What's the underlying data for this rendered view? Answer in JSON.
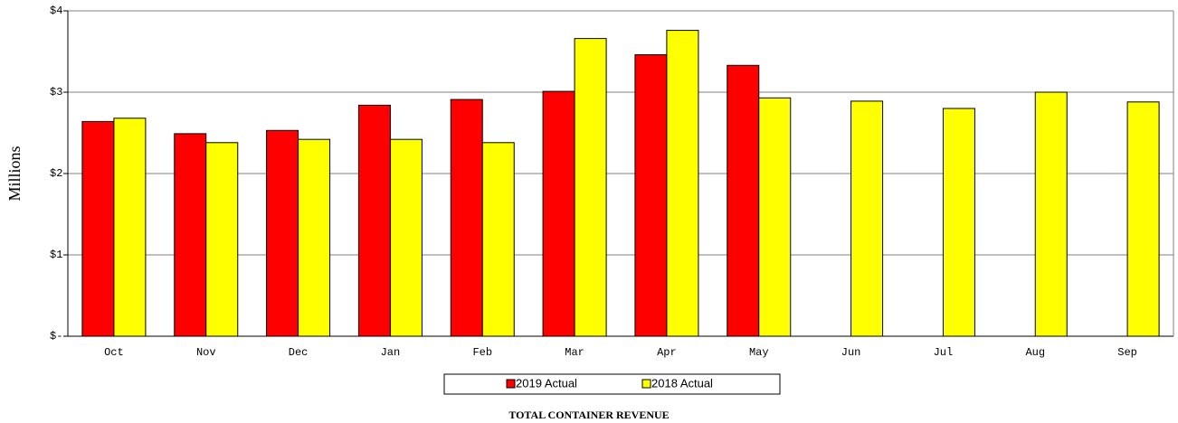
{
  "chart_data": {
    "type": "bar",
    "title": "TOTAL CONTAINER REVENUE",
    "y_label": "Millions",
    "categories": [
      "Oct",
      "Nov",
      "Dec",
      "Jan",
      "Feb",
      "Mar",
      "Apr",
      "May",
      "Jun",
      "Jul",
      "Aug",
      "Sep"
    ],
    "series": [
      {
        "name": "2019 Actual",
        "color": "#ff0000",
        "values": [
          2.64,
          2.49,
          2.53,
          2.84,
          2.91,
          3.01,
          3.46,
          3.33,
          null,
          null,
          null,
          null
        ]
      },
      {
        "name": "2018 Actual",
        "color": "#ffff00",
        "values": [
          2.68,
          2.38,
          2.42,
          2.42,
          2.38,
          3.66,
          3.76,
          2.93,
          2.89,
          2.8,
          3.0,
          2.88
        ]
      }
    ],
    "ylim": [
      0,
      4
    ],
    "yticks": [
      {
        "value": 0,
        "label": "$-"
      },
      {
        "value": 1,
        "label": "$1"
      },
      {
        "value": 2,
        "label": "$2"
      },
      {
        "value": 3,
        "label": "$3"
      },
      {
        "value": 4,
        "label": "$4"
      }
    ],
    "grid": true,
    "legend": "bottom"
  }
}
